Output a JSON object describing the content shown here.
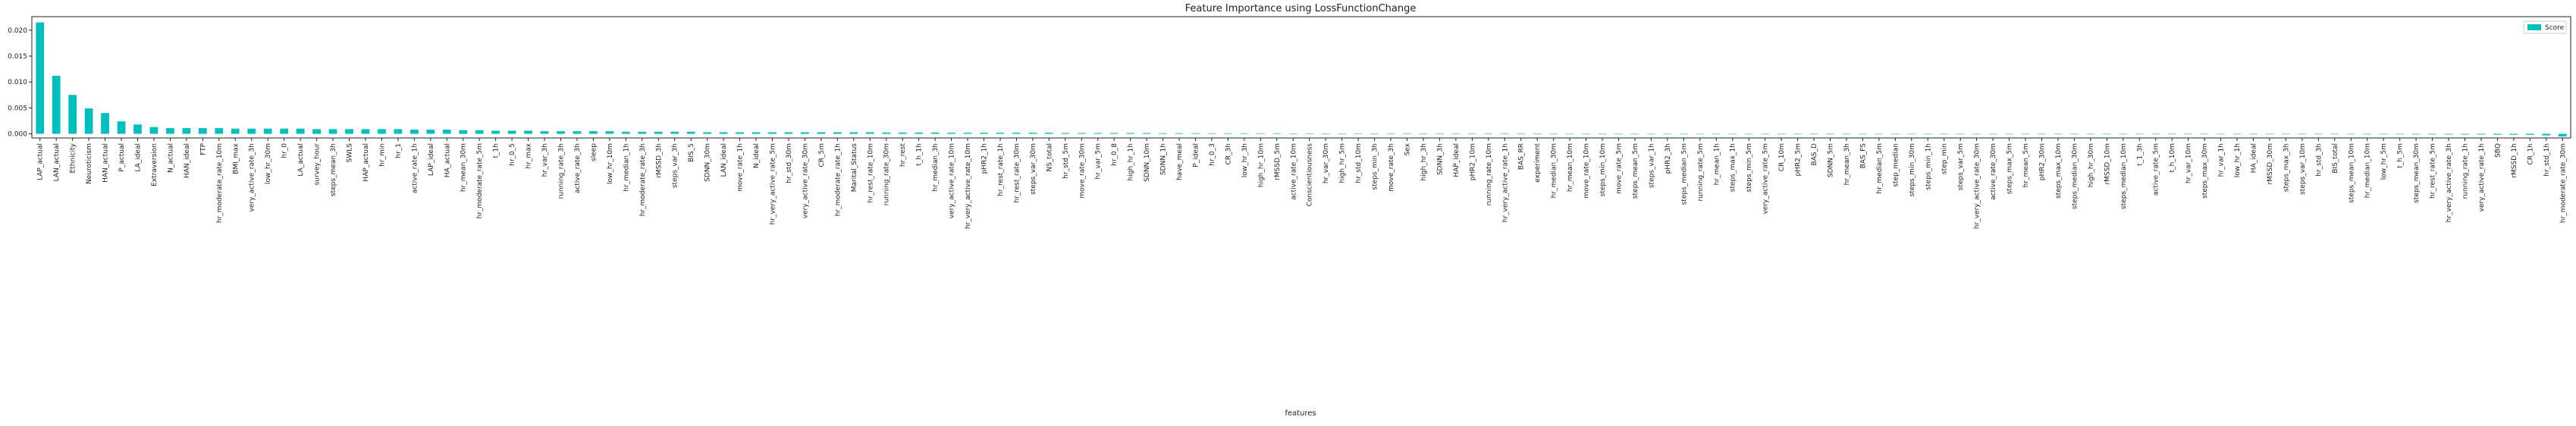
{
  "chart_data": {
    "type": "bar",
    "title": "Feature Importance using LossFunctionChange",
    "xlabel": "features",
    "legend_label": "Score",
    "legend": "upper right",
    "color": "#00bfbf",
    "categories": [
      "LAP_actual",
      "LAN_actual",
      "Ethnicity",
      "Neuroticism",
      "HAN_actual",
      "P_actual",
      "LA_ideal",
      "Extraversion",
      "N_actual",
      "HAN_ideal",
      "FTP",
      "hr_moderate_rate_10m",
      "BMI_max",
      "very_active_rate_3h",
      "low_hr_30m",
      "hr_0",
      "LA_actual",
      "survey_hour",
      "steps_mean_3h",
      "SWLS",
      "HAP_actual",
      "hr_min",
      "hr_1",
      "active_rate_1h",
      "LAP_ideal",
      "HA_actual",
      "hr_mean_30m",
      "hr_moderate_rate_5m",
      "t_1h",
      "hr_0_5",
      "hr_max",
      "hr_var_3h",
      "running_rate_3h",
      "active_rate_3h",
      "sleep",
      "low_hr_10m",
      "hr_median_1h",
      "hr_moderate_rate_3h",
      "rMSSD_3h",
      "steps_var_3h",
      "BIS_5",
      "SDNN_30m",
      "LAN_ideal",
      "move_rate_1h",
      "N_ideal",
      "hr_very_active_rate_5m",
      "hr_std_30m",
      "very_active_rate_30m",
      "CR_5m",
      "hr_moderate_rate_1h",
      "Marital_Status",
      "hr_rest_rate_10m",
      "running_rate_30m",
      "hr_rest",
      "t_h_1h",
      "hr_median_3h",
      "very_active_rate_10m",
      "hr_very_active_rate_10m",
      "pHR2_1h",
      "hr_rest_rate_1h",
      "hr_rest_rate_30m",
      "steps_var_30m",
      "NS_total",
      "hr_std_5m",
      "move_rate_30m",
      "hr_var_5m",
      "hr_0_8",
      "high_hr_1h",
      "SDNN_10m",
      "SDNN_1h",
      "have_meal",
      "P_ideal",
      "hr_0_3",
      "CR_3h",
      "low_hr_3h",
      "high_hr_10m",
      "rMSSD_5m",
      "active_rate_10m",
      "Conscientiousness",
      "hr_var_30m",
      "high_hr_5m",
      "hr_std_10m",
      "steps_min_3h",
      "move_rate_3h",
      "Sex",
      "high_hr_3h",
      "SDNN_3h",
      "HAP_ideal",
      "pHR2_10m",
      "running_rate_10m",
      "hr_very_active_rate_1h",
      "BAS_RR",
      "experiment",
      "hr_median_30m",
      "hr_mean_10m",
      "move_rate_10m",
      "steps_min_10m",
      "move_rate_5m",
      "steps_mean_5m",
      "steps_var_1h",
      "pHR2_3h",
      "steps_median_5m",
      "running_rate_5m",
      "hr_mean_1h",
      "steps_max_1h",
      "steps_min_5m",
      "very_active_rate_5m",
      "CR_10m",
      "pHR2_5m",
      "BAS_D",
      "SDNN_5m",
      "hr_mean_3h",
      "BAS_FS",
      "hr_median_5m",
      "step_median",
      "steps_min_30m",
      "steps_min_1h",
      "step_min",
      "steps_var_5m",
      "hr_very_active_rate_30m",
      "active_rate_30m",
      "steps_max_5m",
      "hr_mean_5m",
      "pHR2_30m",
      "steps_max_10m",
      "steps_median_30m",
      "high_hr_30m",
      "rMSSD_10m",
      "steps_median_10m",
      "t_1_3h",
      "active_rate_5m",
      "t_h_10m",
      "hr_var_10m",
      "steps_max_30m",
      "hr_var_1h",
      "low_hr_1h",
      "HA_ideal",
      "rMSSD_30m",
      "steps_max_3h",
      "steps_var_10m",
      "hr_std_3h",
      "BIS_total",
      "steps_mean_10m",
      "hr_median_10m",
      "low_hr_5m",
      "t_h_5m",
      "steps_mean_30m",
      "hr_rest_rate_5m",
      "hr_very_active_rate_3h",
      "running_rate_1h",
      "very_active_rate_1h",
      "SBQ",
      "rMSSD_1h",
      "CR_1h",
      "hr_std_1h",
      "hr_moderate_rate_30m"
    ],
    "values": [
      0.0215,
      0.0112,
      0.0075,
      0.0049,
      0.004,
      0.0024,
      0.0018,
      0.0013,
      0.0011,
      0.0011,
      0.0011,
      0.0011,
      0.001,
      0.001,
      0.001,
      0.001,
      0.001,
      0.0009,
      0.0009,
      0.0009,
      0.0009,
      0.0009,
      0.0009,
      0.0008,
      0.0008,
      0.0008,
      0.0007,
      0.0007,
      0.0006,
      0.0006,
      0.0006,
      0.0005,
      0.0005,
      0.0005,
      0.0005,
      0.0005,
      0.0004,
      0.0004,
      0.0004,
      0.0004,
      0.0004,
      0.0003,
      0.0003,
      0.0003,
      0.0003,
      0.0003,
      0.0003,
      0.0003,
      0.0003,
      0.0003,
      0.0003,
      0.0003,
      0.00025,
      0.00025,
      0.00025,
      0.00025,
      0.0002,
      0.0002,
      0.0002,
      0.0002,
      0.0002,
      0.0002,
      0.0002,
      0.00015,
      0.00015,
      0.00015,
      0.00015,
      0.00015,
      0.00015,
      0.00012,
      0.00012,
      0.00012,
      0.0001,
      0.0001,
      0.0001,
      0.0001,
      0.0001,
      8e-05,
      8e-05,
      8e-05,
      8e-05,
      6e-05,
      6e-05,
      6e-05,
      5e-05,
      5e-05,
      5e-05,
      4e-05,
      4e-05,
      4e-05,
      3e-05,
      3e-05,
      2e-05,
      0,
      0,
      0,
      0,
      0,
      0,
      0,
      0,
      0,
      0,
      0,
      0,
      0,
      0,
      0,
      0,
      0,
      0,
      0,
      0,
      0,
      0,
      0,
      0,
      0,
      0,
      0,
      0,
      -2e-05,
      -2e-05,
      -3e-05,
      -3e-05,
      -3e-05,
      -4e-05,
      -4e-05,
      -4e-05,
      -5e-05,
      -5e-05,
      -5e-05,
      -6e-05,
      -6e-05,
      -6e-05,
      -7e-05,
      -7e-05,
      -7e-05,
      -8e-05,
      -8e-05,
      -8e-05,
      -9e-05,
      -9e-05,
      -0.0001,
      -0.0001,
      -0.0001,
      -0.00011,
      -0.00012,
      -0.00012,
      -0.00013,
      -0.00014,
      -0.00016,
      -0.00018,
      -0.0002,
      -0.0003,
      -0.0005
    ],
    "ylim": [
      -0.0008,
      0.0226
    ],
    "yticks": [
      {
        "value": 0,
        "label": "0.000"
      },
      {
        "value": 0.005,
        "label": "0.005"
      },
      {
        "value": 0.01,
        "label": "0.010"
      },
      {
        "value": 0.015,
        "label": "0.015"
      },
      {
        "value": 0.02,
        "label": "0.020"
      }
    ]
  }
}
